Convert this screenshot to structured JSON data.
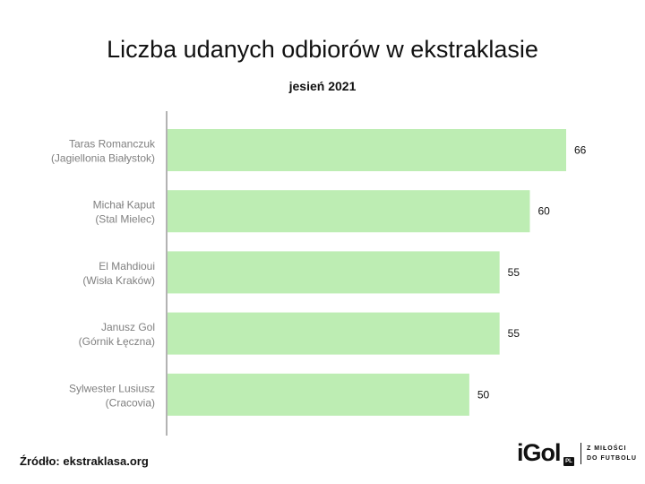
{
  "chart_data": {
    "type": "bar",
    "orientation": "horizontal",
    "title": "Liczba udanych odbiorów w ekstraklasie",
    "subtitle": "jesień 2021",
    "categories": [
      [
        "Taras Romanczuk",
        "(Jagiellonia Białystok)"
      ],
      [
        "Michał Kaput",
        "(Stal Mielec)"
      ],
      [
        "El Mahdioui",
        "(Wisła Kraków)"
      ],
      [
        "Janusz Gol",
        "(Górnik Łęczna)"
      ],
      [
        "Sylwester Lusiusz",
        "(Cracovia)"
      ]
    ],
    "values": [
      66,
      60,
      55,
      55,
      50
    ],
    "data_labels": [
      "66",
      "60",
      "55",
      "55",
      "50"
    ],
    "xlim": [
      0,
      66
    ],
    "grid": false,
    "bar_color": "#bdedb3",
    "axis_color": "#b3b3b3"
  },
  "source": "Źródło: ekstraklasa.org",
  "logo": {
    "name": "iGol",
    "badge": "PL",
    "tagline": [
      "Z MIŁOŚCI",
      "DO FUTBOLU"
    ]
  }
}
